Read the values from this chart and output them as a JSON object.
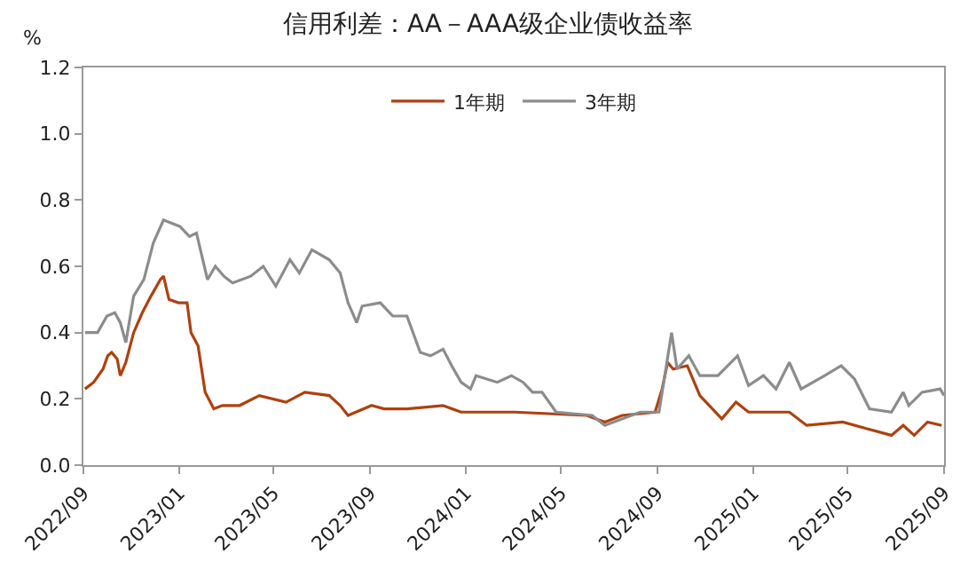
{
  "chart_data": {
    "type": "line",
    "title": "信用利差：AA－AAA级企业债收益率",
    "ylabel": "%",
    "xlim": [
      "2022-09-01",
      "2025-09-01"
    ],
    "xticks": [
      {
        "value": "2022-09-01",
        "label": "2022/09"
      },
      {
        "value": "2023-01-01",
        "label": "2023/01"
      },
      {
        "value": "2023-05-01",
        "label": "2023/05"
      },
      {
        "value": "2023-09-01",
        "label": "2023/09"
      },
      {
        "value": "2024-01-01",
        "label": "2024/01"
      },
      {
        "value": "2024-05-01",
        "label": "2024/05"
      },
      {
        "value": "2024-09-01",
        "label": "2024/09"
      },
      {
        "value": "2025-01-01",
        "label": "2025/01"
      },
      {
        "value": "2025-05-01",
        "label": "2025/05"
      },
      {
        "value": "2025-09-01",
        "label": "2025/09"
      }
    ],
    "ylim": [
      0,
      1.2
    ],
    "yticks": [
      {
        "value": 0,
        "label": "0.0"
      },
      {
        "value": 0.2,
        "label": "0.2"
      },
      {
        "value": 0.4,
        "label": "0.4"
      },
      {
        "value": 0.6,
        "label": "0.6"
      },
      {
        "value": 0.8,
        "label": "0.8"
      },
      {
        "value": 1.0,
        "label": "1.0"
      },
      {
        "value": 1.2,
        "label": "1.2"
      }
    ],
    "legend": "top",
    "marker": "none",
    "line_style": "solid",
    "series": [
      {
        "name": "1年期",
        "color": "#b0400e",
        "x": [
          "2022-09-03",
          "2022-09-14",
          "2022-09-26",
          "2022-10-02",
          "2022-10-07",
          "2022-10-14",
          "2022-10-18",
          "2022-10-25",
          "2022-11-04",
          "2022-11-15",
          "2022-11-26",
          "2022-12-08",
          "2022-12-12",
          "2022-12-19",
          "2022-12-31",
          "2023-01-11",
          "2023-01-16",
          "2023-01-25",
          "2023-02-03",
          "2023-02-14",
          "2023-02-25",
          "2023-03-19",
          "2023-04-13",
          "2023-05-17",
          "2023-06-10",
          "2023-07-11",
          "2023-07-25",
          "2023-08-04",
          "2023-09-03",
          "2023-09-19",
          "2023-10-18",
          "2023-12-03",
          "2023-12-26",
          "2024-03-03",
          "2024-06-03",
          "2024-06-26",
          "2024-07-18",
          "2024-08-29",
          "2024-09-07",
          "2024-09-14",
          "2024-09-21",
          "2024-10-09",
          "2024-10-25",
          "2024-11-22",
          "2024-12-10",
          "2024-12-26",
          "2025-02-16",
          "2025-03-10",
          "2025-04-25",
          "2025-05-26",
          "2025-06-26",
          "2025-07-11",
          "2025-07-25",
          "2025-08-11",
          "2025-08-29"
        ],
        "values": [
          0.23,
          0.25,
          0.29,
          0.33,
          0.34,
          0.32,
          0.27,
          0.31,
          0.4,
          0.46,
          0.51,
          0.56,
          0.57,
          0.5,
          0.49,
          0.49,
          0.4,
          0.36,
          0.22,
          0.17,
          0.18,
          0.18,
          0.21,
          0.19,
          0.22,
          0.21,
          0.18,
          0.15,
          0.18,
          0.17,
          0.17,
          0.18,
          0.16,
          0.16,
          0.15,
          0.13,
          0.15,
          0.16,
          0.23,
          0.31,
          0.29,
          0.3,
          0.21,
          0.14,
          0.19,
          0.16,
          0.16,
          0.12,
          0.13,
          0.11,
          0.09,
          0.12,
          0.09,
          0.13,
          0.12
        ]
      },
      {
        "name": "3年期",
        "color": "#8c8c8c",
        "x": [
          "2022-09-03",
          "2022-09-19",
          "2022-10-01",
          "2022-10-11",
          "2022-10-18",
          "2022-10-25",
          "2022-11-04",
          "2022-11-17",
          "2022-11-29",
          "2022-12-12",
          "2023-01-02",
          "2023-01-14",
          "2023-01-23",
          "2023-02-06",
          "2023-02-16",
          "2023-02-27",
          "2023-03-10",
          "2023-04-02",
          "2023-04-18",
          "2023-05-04",
          "2023-05-22",
          "2023-06-03",
          "2023-06-19",
          "2023-07-11",
          "2023-07-25",
          "2023-08-04",
          "2023-08-15",
          "2023-08-22",
          "2023-09-14",
          "2023-09-30",
          "2023-10-18",
          "2023-11-04",
          "2023-11-17",
          "2023-12-03",
          "2023-12-14",
          "2023-12-26",
          "2024-01-07",
          "2024-01-14",
          "2024-02-10",
          "2024-02-28",
          "2024-03-14",
          "2024-03-26",
          "2024-04-07",
          "2024-04-25",
          "2024-06-10",
          "2024-06-26",
          "2024-08-10",
          "2024-09-03",
          "2024-09-19",
          "2024-09-26",
          "2024-10-11",
          "2024-10-25",
          "2024-11-17",
          "2024-12-12",
          "2024-12-26",
          "2025-01-14",
          "2025-01-30",
          "2025-02-16",
          "2025-03-03",
          "2025-04-02",
          "2025-04-23",
          "2025-05-10",
          "2025-05-29",
          "2025-06-26",
          "2025-07-11",
          "2025-07-18",
          "2025-08-04",
          "2025-08-27",
          "2025-09-01"
        ],
        "values": [
          0.4,
          0.4,
          0.45,
          0.46,
          0.43,
          0.37,
          0.51,
          0.56,
          0.67,
          0.74,
          0.72,
          0.69,
          0.7,
          0.56,
          0.6,
          0.57,
          0.55,
          0.57,
          0.6,
          0.54,
          0.62,
          0.58,
          0.65,
          0.62,
          0.58,
          0.49,
          0.43,
          0.48,
          0.49,
          0.45,
          0.45,
          0.34,
          0.33,
          0.35,
          0.3,
          0.25,
          0.23,
          0.27,
          0.25,
          0.27,
          0.25,
          0.22,
          0.22,
          0.16,
          0.15,
          0.12,
          0.16,
          0.16,
          0.4,
          0.29,
          0.33,
          0.27,
          0.27,
          0.33,
          0.24,
          0.27,
          0.23,
          0.31,
          0.23,
          0.27,
          0.3,
          0.26,
          0.17,
          0.16,
          0.22,
          0.18,
          0.22,
          0.23,
          0.21
        ]
      }
    ]
  }
}
